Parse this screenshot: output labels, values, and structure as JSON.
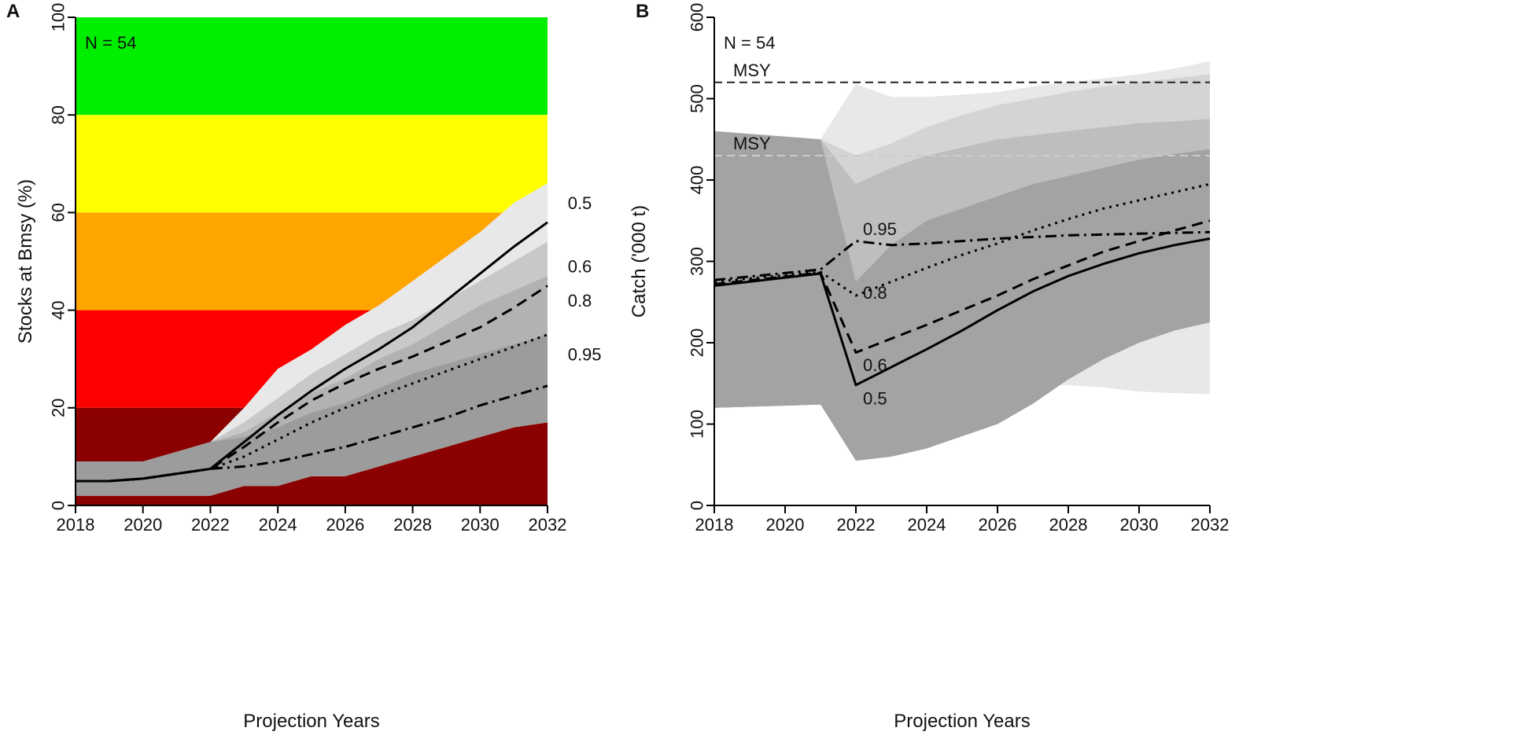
{
  "chart_data": [
    {
      "panel": "A",
      "type": "line",
      "annotation": "N = 54",
      "xlabel": "Projection Years",
      "ylabel": "Stocks at Bmsy (%)",
      "xlim": [
        2018,
        2032
      ],
      "ylim": [
        0,
        100
      ],
      "x_ticks": [
        2018,
        2020,
        2022,
        2024,
        2026,
        2028,
        2030,
        2032
      ],
      "y_ticks": [
        0,
        20,
        40,
        60,
        80,
        100
      ],
      "status_bands": [
        {
          "from": 80,
          "to": 100,
          "color": "#00ee00"
        },
        {
          "from": 60,
          "to": 80,
          "color": "#ffff00"
        },
        {
          "from": 40,
          "to": 60,
          "color": "#ffa500"
        },
        {
          "from": 20,
          "to": 40,
          "color": "#ff0000"
        },
        {
          "from": 0,
          "to": 20,
          "color": "#8b0000"
        }
      ],
      "years": [
        2018,
        2019,
        2020,
        2021,
        2022,
        2023,
        2024,
        2025,
        2026,
        2027,
        2028,
        2029,
        2030,
        2031,
        2032
      ],
      "ribbons": [
        {
          "name": "0.5 range",
          "color": "#e8e8e8",
          "lower": [
            2,
            2,
            2,
            2,
            2,
            4,
            4,
            6,
            6,
            8,
            10,
            12,
            14,
            16,
            17
          ],
          "upper": [
            9,
            9,
            9,
            11,
            13,
            20,
            28,
            32,
            37,
            41,
            46,
            51,
            56,
            62,
            66
          ]
        },
        {
          "name": "0.6 range",
          "color": "#c8c8c8",
          "lower": [
            2,
            2,
            2,
            2,
            2,
            4,
            4,
            6,
            6,
            8,
            10,
            12,
            14,
            16,
            17
          ],
          "upper": [
            9,
            9,
            9,
            11,
            13,
            17,
            22,
            27,
            31,
            35,
            38,
            42,
            46,
            50,
            54
          ]
        },
        {
          "name": "0.8 range",
          "color": "#b2b2b2",
          "lower": [
            2,
            2,
            2,
            2,
            2,
            4,
            4,
            6,
            6,
            8,
            10,
            12,
            14,
            16,
            17
          ],
          "upper": [
            9,
            9,
            9,
            11,
            13,
            15,
            19,
            23,
            26,
            30,
            33,
            37,
            41,
            44,
            47
          ]
        },
        {
          "name": "0.95 range",
          "color": "#9c9c9c",
          "lower": [
            2,
            2,
            2,
            2,
            2,
            4,
            4,
            6,
            6,
            8,
            10,
            12,
            14,
            16,
            17
          ],
          "upper": [
            9,
            9,
            9,
            11,
            13,
            14,
            16,
            19,
            21,
            24,
            27,
            29,
            31,
            33,
            35
          ]
        }
      ],
      "series": [
        {
          "name": "0.5",
          "dash": "solid",
          "values": [
            5,
            5,
            5.5,
            6.5,
            7.5,
            13,
            18.5,
            23.5,
            28,
            32,
            36.5,
            42,
            47.5,
            53,
            58
          ]
        },
        {
          "name": "0.6",
          "dash": "dashed",
          "values": [
            5,
            5,
            5.5,
            6.5,
            7.5,
            12,
            17,
            21.5,
            25,
            28,
            30.5,
            33.5,
            36.5,
            40.5,
            45
          ]
        },
        {
          "name": "0.8",
          "dash": "dotted",
          "values": [
            5,
            5,
            5.5,
            6.5,
            7.5,
            10,
            13.5,
            17,
            20,
            22.5,
            25,
            27.5,
            30,
            32.5,
            35
          ]
        },
        {
          "name": "0.95",
          "dash": "dashdot",
          "values": [
            5,
            5,
            5.5,
            6.5,
            7.5,
            8,
            9,
            10.5,
            12,
            14,
            16,
            18,
            20.5,
            22.5,
            24.5
          ]
        }
      ],
      "line_labels": [
        {
          "text": "0.5",
          "x": 2032.6,
          "y": 62
        },
        {
          "text": "0.6",
          "x": 2032.6,
          "y": 49
        },
        {
          "text": "0.8",
          "x": 2032.6,
          "y": 42
        },
        {
          "text": "0.95",
          "x": 2032.6,
          "y": 31
        }
      ]
    },
    {
      "panel": "B",
      "type": "line",
      "annotation": "N = 54",
      "xlabel": "Projection Years",
      "ylabel": "Catch ('000 t)",
      "xlim": [
        2018,
        2032
      ],
      "ylim": [
        0,
        600
      ],
      "x_ticks": [
        2018,
        2020,
        2022,
        2024,
        2026,
        2028,
        2030,
        2032
      ],
      "y_ticks": [
        0,
        100,
        200,
        300,
        400,
        500,
        600
      ],
      "reference_lines": [
        {
          "label": "MSY",
          "value": 520,
          "style": "dashed",
          "color": "#222222"
        },
        {
          "label": "MSY",
          "value": 430,
          "style": "dashed",
          "color": "#cccccc"
        }
      ],
      "years": [
        2018,
        2021,
        2022,
        2023,
        2024,
        2025,
        2026,
        2027,
        2028,
        2029,
        2030,
        2031,
        2032
      ],
      "ribbons": [
        {
          "name": "0.5 range",
          "color": "#e8e8e8",
          "lower": [
            120,
            124,
            125,
            135,
            140,
            142,
            145,
            147,
            148,
            145,
            140,
            138,
            137
          ],
          "upper": [
            460,
            450,
            518,
            502,
            502,
            505,
            508,
            515,
            520,
            525,
            530,
            537,
            546
          ]
        },
        {
          "name": "0.6 range",
          "color": "#d4d4d4",
          "lower": [
            120,
            124,
            80,
            95,
            105,
            115,
            130,
            150,
            165,
            180,
            200,
            215,
            230
          ],
          "upper": [
            460,
            450,
            430,
            445,
            465,
            480,
            492,
            500,
            508,
            515,
            520,
            525,
            530
          ]
        },
        {
          "name": "0.8 range",
          "color": "#bebebe",
          "lower": [
            120,
            124,
            65,
            85,
            100,
            115,
            130,
            150,
            170,
            190,
            210,
            225,
            240
          ],
          "upper": [
            460,
            450,
            395,
            415,
            430,
            440,
            450,
            455,
            460,
            465,
            470,
            472,
            475
          ]
        },
        {
          "name": "0.95 range",
          "color": "#a3a3a3",
          "lower": [
            120,
            124,
            55,
            60,
            70,
            85,
            100,
            125,
            155,
            180,
            200,
            215,
            225
          ],
          "upper": [
            460,
            450,
            275,
            320,
            350,
            365,
            380,
            395,
            405,
            415,
            425,
            432,
            438
          ]
        }
      ],
      "series": [
        {
          "name": "0.5",
          "dash": "solid",
          "values": [
            270,
            285,
            148,
            170,
            192,
            215,
            240,
            263,
            282,
            297,
            310,
            320,
            328
          ]
        },
        {
          "name": "0.6",
          "dash": "dashed",
          "values": [
            272,
            286,
            188,
            205,
            222,
            240,
            258,
            278,
            295,
            312,
            325,
            338,
            350
          ]
        },
        {
          "name": "0.8",
          "dash": "dotted",
          "values": [
            275,
            287,
            258,
            275,
            292,
            308,
            322,
            338,
            352,
            365,
            375,
            385,
            395
          ]
        },
        {
          "name": "0.95",
          "dash": "dashdot",
          "values": [
            277,
            290,
            325,
            320,
            322,
            325,
            328,
            330,
            332,
            333,
            334,
            335,
            336
          ]
        }
      ],
      "line_labels": [
        {
          "text": "0.95",
          "x": 2022.2,
          "y": 340
        },
        {
          "text": "0.8",
          "x": 2022.2,
          "y": 262
        },
        {
          "text": "0.6",
          "x": 2022.2,
          "y": 173
        },
        {
          "text": "0.5",
          "x": 2022.2,
          "y": 132
        }
      ]
    }
  ]
}
